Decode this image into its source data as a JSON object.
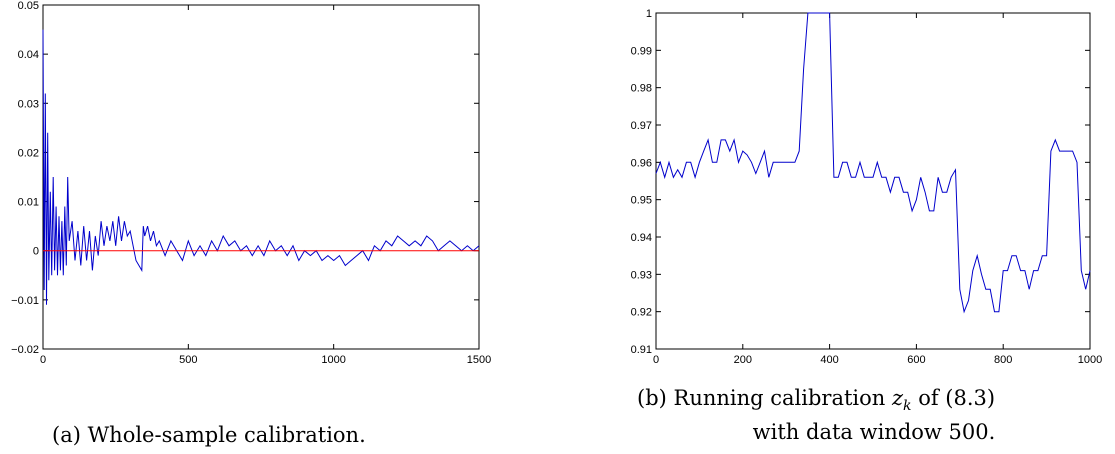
{
  "chart_data": [
    {
      "type": "line",
      "caption": "(a) Whole-sample calibration.",
      "xlim": [
        0,
        1500
      ],
      "ylim": [
        -0.02,
        0.05
      ],
      "x_ticks": [
        0,
        500,
        1000,
        1500
      ],
      "y_ticks": [
        -0.02,
        -0.01,
        0,
        0.01,
        0.02,
        0.03,
        0.04,
        0.05
      ],
      "x_tick_labels": [
        "0",
        "500",
        "1000",
        "1500"
      ],
      "y_tick_labels": [
        "−0.02",
        "−0.01",
        "0",
        "0.01",
        "0.02",
        "0.03",
        "0.04",
        "0.05"
      ],
      "grid": false,
      "series": [
        {
          "color": "#0000cc",
          "x": [
            0,
            4,
            8,
            12,
            16,
            20,
            25,
            30,
            35,
            40,
            45,
            50,
            55,
            60,
            65,
            70,
            75,
            80,
            85,
            90,
            100,
            110,
            120,
            130,
            140,
            150,
            160,
            170,
            180,
            190,
            200,
            210,
            220,
            230,
            240,
            250,
            260,
            270,
            280,
            290,
            300,
            320,
            340,
            345,
            350,
            360,
            370,
            380,
            390,
            400,
            420,
            440,
            460,
            480,
            500,
            520,
            540,
            560,
            580,
            600,
            620,
            640,
            660,
            680,
            700,
            720,
            740,
            760,
            780,
            800,
            820,
            840,
            860,
            880,
            900,
            920,
            940,
            960,
            980,
            1000,
            1020,
            1040,
            1060,
            1080,
            1100,
            1120,
            1140,
            1160,
            1180,
            1200,
            1220,
            1240,
            1260,
            1280,
            1300,
            1320,
            1340,
            1360,
            1380,
            1400,
            1420,
            1440,
            1460,
            1480,
            1500
          ],
          "y": [
            0.045,
            -0.008,
            0.032,
            -0.011,
            0.024,
            -0.006,
            0.012,
            -0.005,
            0.015,
            -0.004,
            0.009,
            -0.005,
            0.007,
            -0.004,
            0.006,
            -0.005,
            0.009,
            -0.003,
            0.015,
            0.002,
            0.006,
            -0.002,
            0.004,
            -0.003,
            0.005,
            -0.002,
            0.004,
            -0.004,
            0.003,
            -0.001,
            0.006,
            0.001,
            0.005,
            0.002,
            0.006,
            0.001,
            0.007,
            0.002,
            0.006,
            0.003,
            0.004,
            -0.002,
            -0.004,
            0.005,
            0.003,
            0.005,
            0.002,
            0.004,
            0.001,
            0.002,
            -0.001,
            0.002,
            0.0,
            -0.002,
            0.002,
            -0.001,
            0.001,
            -0.001,
            0.002,
            0.0,
            0.003,
            0.001,
            0.002,
            0.0,
            0.001,
            -0.001,
            0.001,
            -0.001,
            0.002,
            0.0,
            0.001,
            -0.001,
            0.001,
            -0.002,
            0.0,
            -0.001,
            0.0,
            -0.002,
            -0.001,
            -0.002,
            -0.001,
            -0.003,
            -0.002,
            -0.001,
            0.0,
            -0.002,
            0.001,
            0.0,
            0.002,
            0.001,
            0.003,
            0.002,
            0.001,
            0.002,
            0.001,
            0.003,
            0.002,
            0.0,
            0.001,
            0.002,
            0.001,
            0.0,
            0.001,
            0.0,
            0.001
          ]
        },
        {
          "color": "#ff0000",
          "x": [
            0,
            1500
          ],
          "y": [
            0,
            0
          ]
        }
      ]
    },
    {
      "type": "line",
      "caption_line1_before": "(b) Running calibration ",
      "caption_var": "z",
      "caption_sub": "k",
      "caption_line1_after": " of (8.3)",
      "caption_line2": "with data window 500.",
      "xlim": [
        0,
        1000
      ],
      "ylim": [
        0.91,
        1.0
      ],
      "x_ticks": [
        0,
        200,
        400,
        600,
        800,
        1000
      ],
      "y_ticks": [
        0.91,
        0.92,
        0.93,
        0.94,
        0.95,
        0.96,
        0.97,
        0.98,
        0.99,
        1.0
      ],
      "x_tick_labels": [
        "0",
        "200",
        "400",
        "600",
        "800",
        "1000"
      ],
      "y_tick_labels": [
        "0.91",
        "0.92",
        "0.93",
        "0.94",
        "0.95",
        "0.96",
        "0.97",
        "0.98",
        "0.99",
        "1"
      ],
      "grid": false,
      "series": [
        {
          "color": "#0000cc",
          "x": [
            0,
            10,
            20,
            30,
            40,
            50,
            60,
            70,
            80,
            90,
            100,
            110,
            120,
            130,
            140,
            150,
            160,
            170,
            180,
            190,
            200,
            210,
            220,
            230,
            240,
            250,
            260,
            270,
            280,
            290,
            300,
            310,
            320,
            330,
            340,
            350,
            360,
            370,
            380,
            390,
            400,
            410,
            420,
            430,
            440,
            450,
            460,
            470,
            480,
            490,
            500,
            510,
            520,
            530,
            540,
            550,
            560,
            570,
            580,
            590,
            600,
            610,
            620,
            630,
            640,
            650,
            660,
            670,
            680,
            690,
            700,
            710,
            720,
            730,
            740,
            750,
            760,
            770,
            780,
            790,
            800,
            810,
            820,
            830,
            840,
            850,
            860,
            870,
            880,
            890,
            900,
            910,
            920,
            930,
            940,
            950,
            960,
            970,
            980,
            990,
            1000
          ],
          "y": [
            0.957,
            0.96,
            0.956,
            0.96,
            0.956,
            0.958,
            0.956,
            0.96,
            0.96,
            0.956,
            0.96,
            0.963,
            0.966,
            0.96,
            0.96,
            0.966,
            0.966,
            0.963,
            0.966,
            0.96,
            0.963,
            0.962,
            0.96,
            0.957,
            0.96,
            0.963,
            0.956,
            0.96,
            0.96,
            0.96,
            0.96,
            0.96,
            0.96,
            0.963,
            0.985,
            1.0,
            1.0,
            1.0,
            1.0,
            1.0,
            1.0,
            0.956,
            0.956,
            0.96,
            0.96,
            0.956,
            0.956,
            0.96,
            0.956,
            0.956,
            0.956,
            0.96,
            0.956,
            0.956,
            0.952,
            0.956,
            0.956,
            0.952,
            0.952,
            0.947,
            0.95,
            0.956,
            0.952,
            0.947,
            0.947,
            0.956,
            0.952,
            0.952,
            0.956,
            0.958,
            0.926,
            0.92,
            0.923,
            0.931,
            0.935,
            0.93,
            0.926,
            0.926,
            0.92,
            0.92,
            0.931,
            0.931,
            0.935,
            0.935,
            0.931,
            0.931,
            0.926,
            0.931,
            0.931,
            0.935,
            0.935,
            0.963,
            0.966,
            0.963,
            0.963,
            0.963,
            0.963,
            0.96,
            0.931,
            0.926,
            0.931
          ]
        }
      ]
    }
  ]
}
